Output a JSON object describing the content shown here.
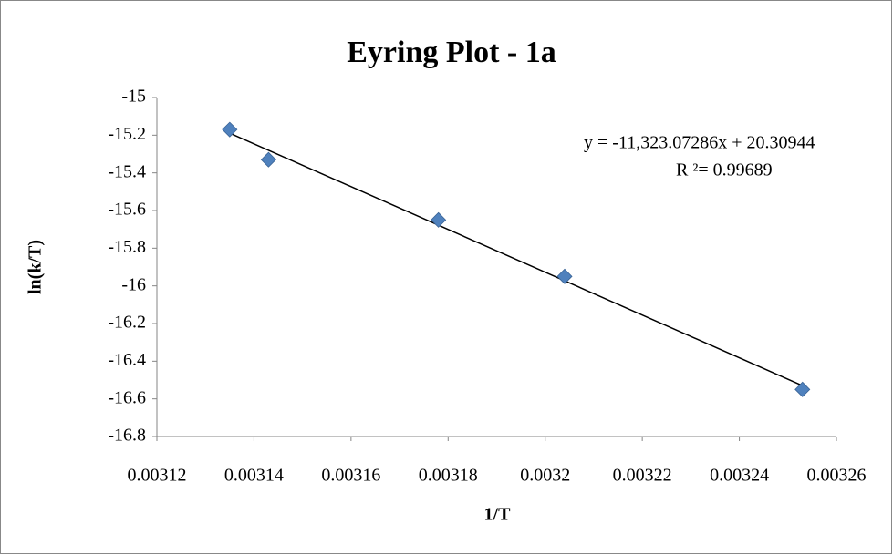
{
  "chart_data": {
    "type": "scatter",
    "title": "Eyring Plot - 1a",
    "x_label": "1/T",
    "y_label": "ln(k/T)",
    "series": [
      {
        "name": "ln(k/T)",
        "color": "#4f81bd",
        "x": [
          0.003135,
          0.003143,
          0.003178,
          0.003204,
          0.003253
        ],
        "values": [
          -15.17,
          -15.33,
          -15.65,
          -15.95,
          -16.55
        ]
      }
    ],
    "trendline": {
      "color": "#000000",
      "equation": "y = -11,323.07286x + 20.30944",
      "r_squared": "R ²= 0.99689"
    },
    "xlim": [
      0.00312,
      0.00326
    ],
    "xticks": [
      0.00312,
      0.00314,
      0.00316,
      0.00318,
      0.0032,
      0.00322,
      0.00324,
      0.00326
    ],
    "ylim": [
      -16.8,
      -15
    ],
    "yticks": [
      -16.8,
      -16.6,
      -16.4,
      -16.2,
      -16,
      -15.8,
      -15.6,
      -15.4,
      -15.2,
      -15
    ],
    "grid": false
  }
}
